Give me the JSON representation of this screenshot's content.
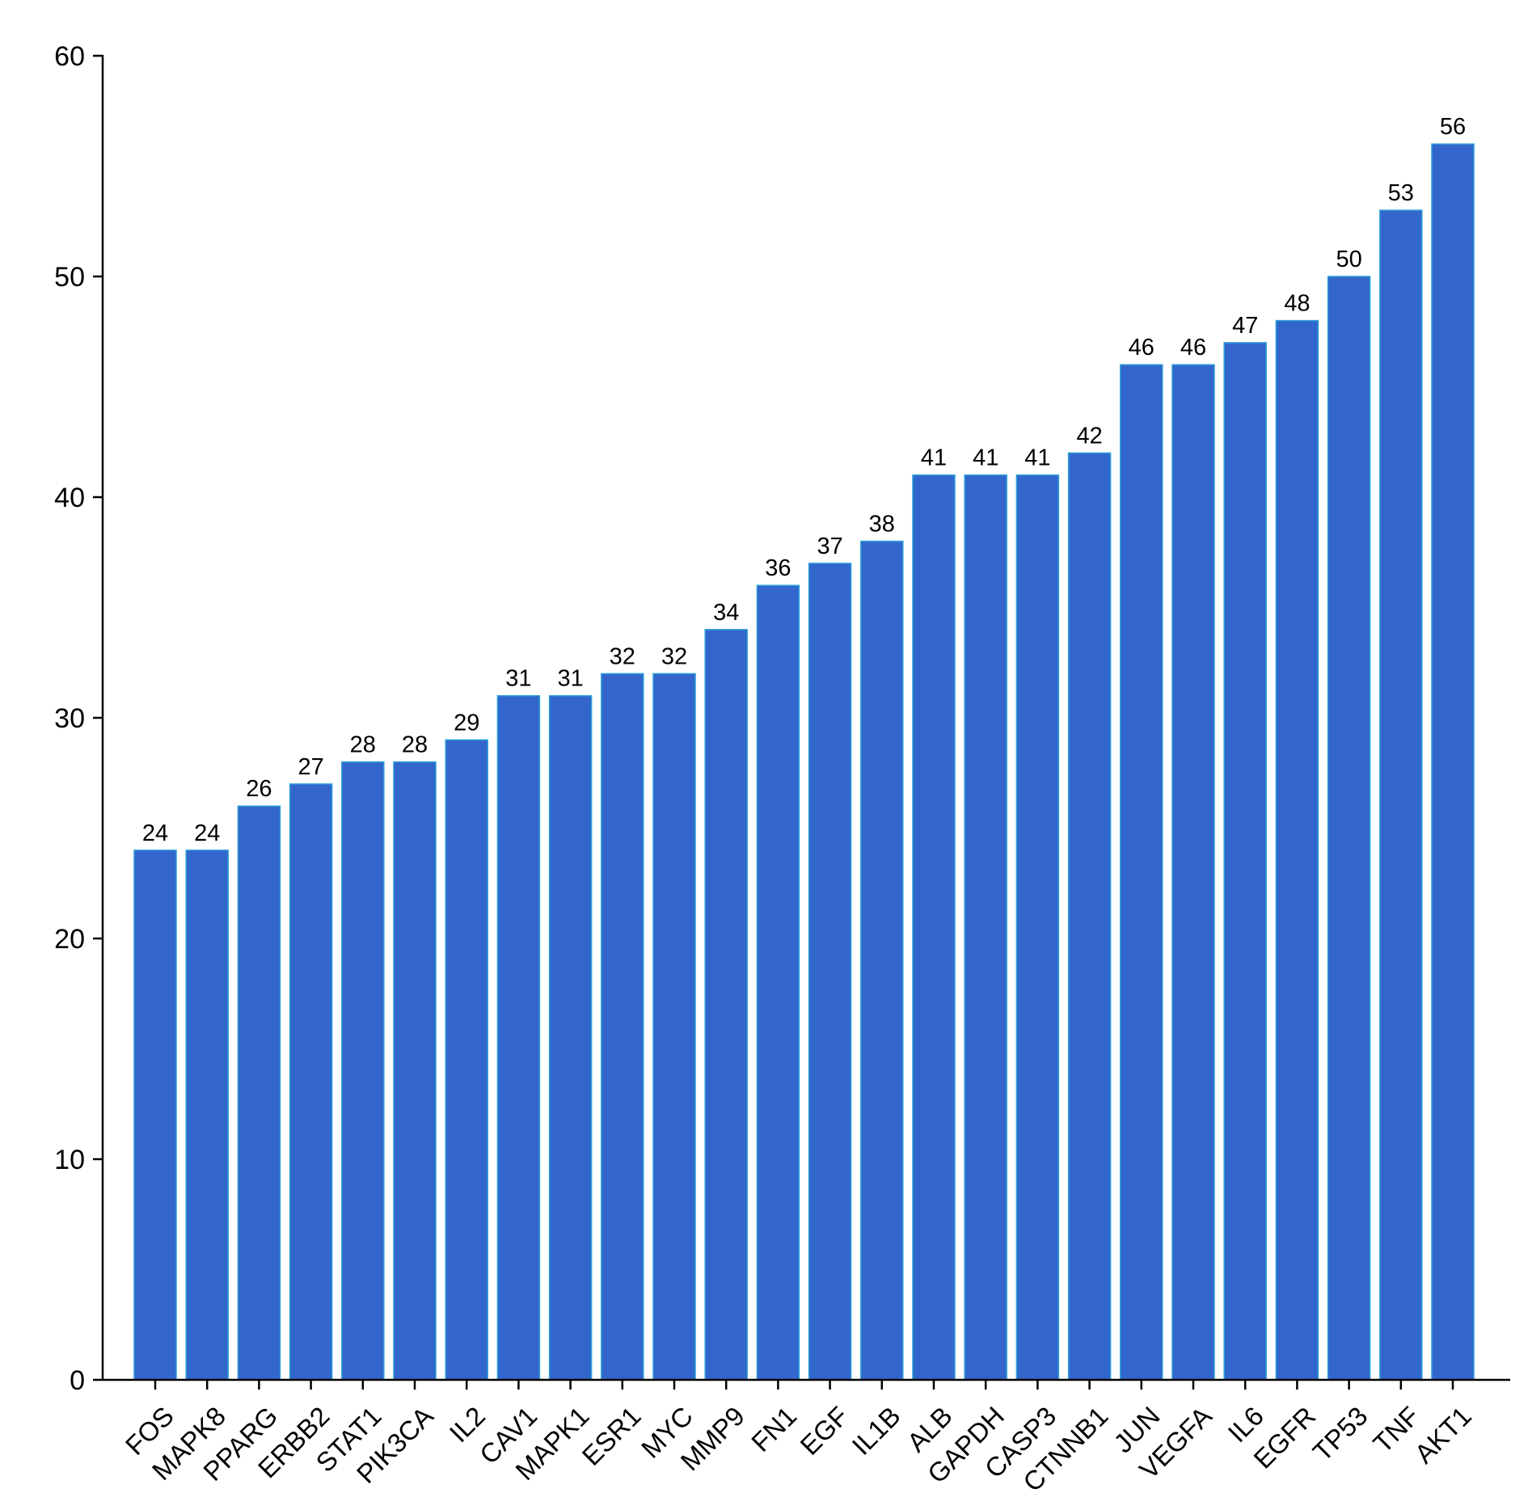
{
  "chart_data": {
    "type": "bar",
    "title": "",
    "xlabel": "",
    "ylabel": "",
    "categories": [
      "FOS",
      "MAPK8",
      "PPARG",
      "ERBB2",
      "STAT1",
      "PIK3CA",
      "IL2",
      "CAV1",
      "MAPK1",
      "ESR1",
      "MYC",
      "MMP9",
      "FN1",
      "EGF",
      "IL1B",
      "ALB",
      "GAPDH",
      "CASP3",
      "CTNNB1",
      "JUN",
      "VEGFA",
      "IL6",
      "EGFR",
      "TP53",
      "TNF",
      "AKT1"
    ],
    "values": [
      24,
      24,
      26,
      27,
      28,
      28,
      29,
      31,
      31,
      32,
      32,
      34,
      36,
      37,
      38,
      41,
      41,
      41,
      42,
      46,
      46,
      47,
      48,
      50,
      53,
      56
    ],
    "ylim": [
      0,
      60
    ],
    "yticks": [
      0,
      10,
      20,
      30,
      40,
      50,
      60
    ],
    "grid": false,
    "bar_color": "#3366cc",
    "bar_edge_color": "#2b9fd8"
  }
}
